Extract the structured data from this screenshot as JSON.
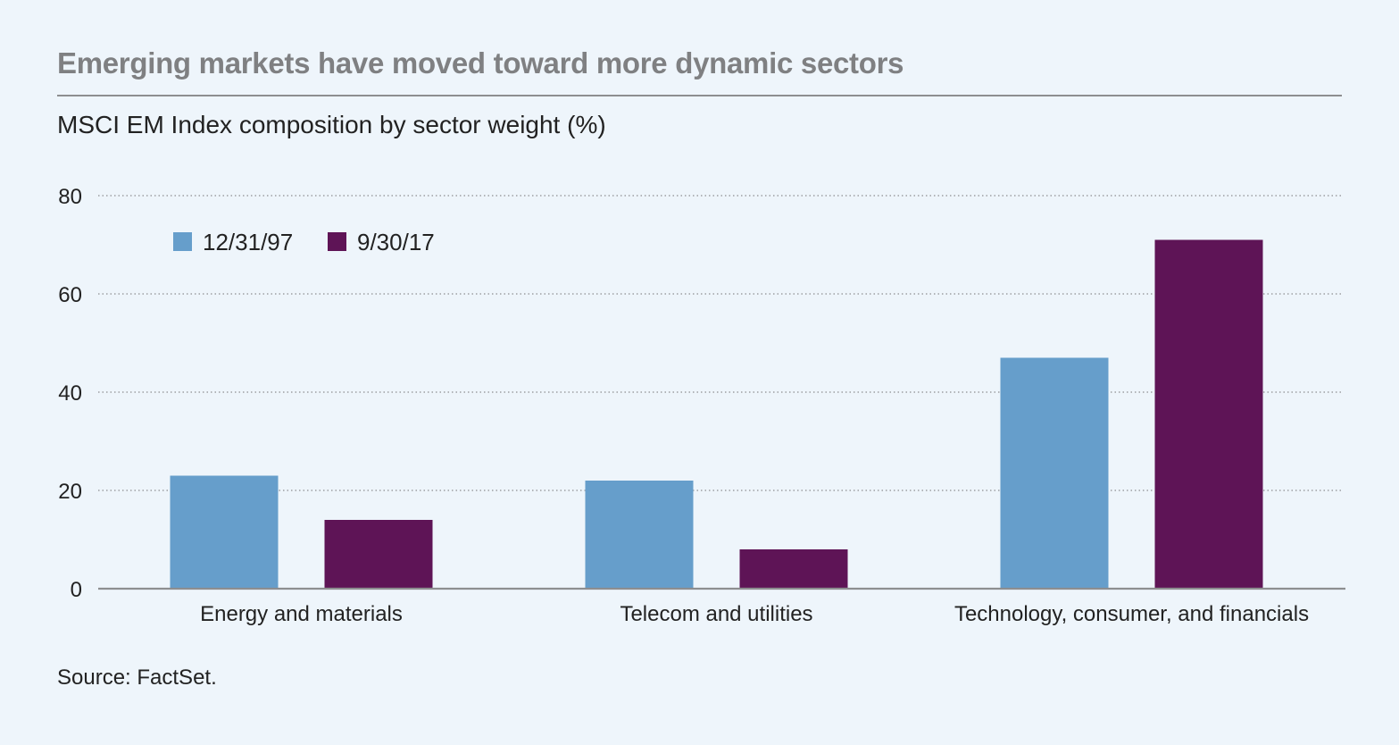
{
  "header": {
    "title": "Emerging markets have moved toward more dynamic sectors",
    "subtitle": "MSCI EM Index composition by sector weight (%)"
  },
  "footer": {
    "source": "Source: FactSet."
  },
  "colors": {
    "series_1997": "#669ecb",
    "series_2017": "#5e1456",
    "grid": "#8d8e90",
    "axis": "#8d8e90"
  },
  "chart_data": {
    "type": "bar",
    "title": "",
    "xlabel": "",
    "ylabel": "",
    "categories": [
      "Energy and materials",
      "Telecom and utilities",
      "Technology, consumer, and financials"
    ],
    "series": [
      {
        "name": "12/31/97",
        "values": [
          23,
          22,
          47
        ]
      },
      {
        "name": "9/30/17",
        "values": [
          14,
          8,
          71
        ]
      }
    ],
    "ylim": [
      0,
      80
    ],
    "yticks": [
      0,
      20,
      40,
      60,
      80
    ],
    "grid": true,
    "legend_position": "top-left"
  }
}
